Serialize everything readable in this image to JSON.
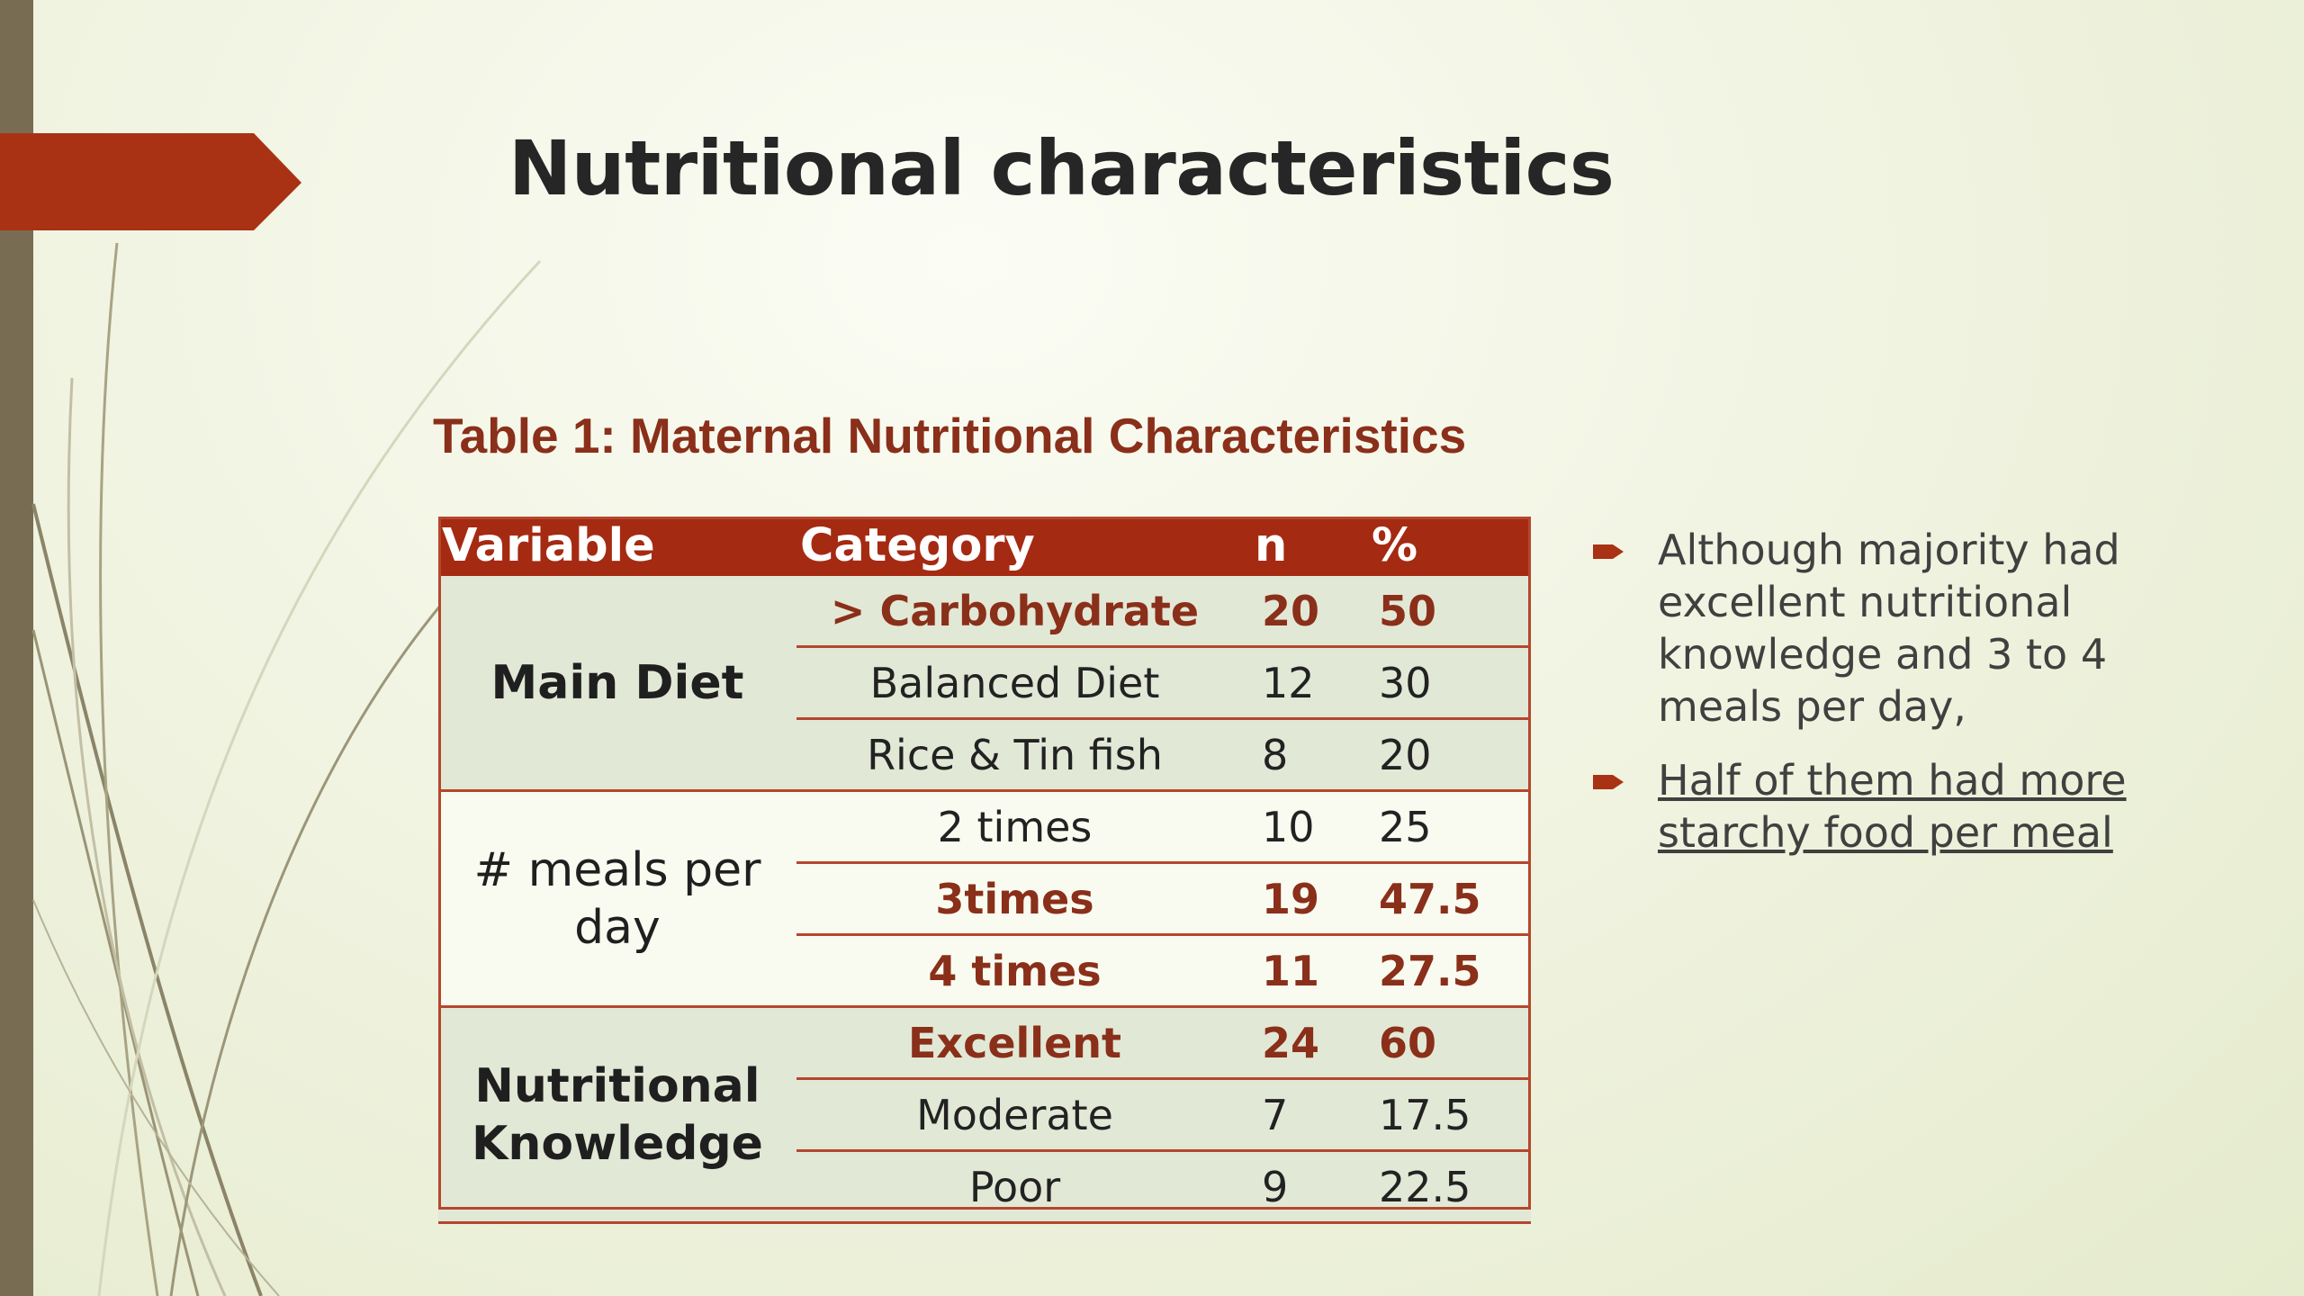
{
  "slide": {
    "title": "Nutritional characteristics",
    "table_caption": "Table 1: Maternal Nutritional Characteristics"
  },
  "table": {
    "headers": [
      "Variable",
      "Category",
      "n",
      "%"
    ],
    "groups": [
      {
        "variable": "Main Diet",
        "rows": [
          {
            "category": "> Carbohydrate",
            "n": "20",
            "pct": "50",
            "bold": true
          },
          {
            "category": "Balanced Diet",
            "n": "12",
            "pct": "30",
            "bold": false
          },
          {
            "category": "Rice & Tin fish",
            "n": "8",
            "pct": "20",
            "bold": false
          }
        ]
      },
      {
        "variable": "# meals per day",
        "rows": [
          {
            "category": "2 times",
            "n": "10",
            "pct": "25",
            "bold": false
          },
          {
            "category": "3times",
            "n": "19",
            "pct": "47.5",
            "bold": true
          },
          {
            "category": "4 times",
            "n": "11",
            "pct": "27.5",
            "bold": true
          }
        ]
      },
      {
        "variable": "Nutritional Knowledge",
        "rows": [
          {
            "category": "Excellent",
            "n": "24",
            "pct": "60",
            "bold": true
          },
          {
            "category": "Moderate",
            "n": "7",
            "pct": "17.5",
            "bold": false
          },
          {
            "category": "Poor",
            "n": "9",
            "pct": "22.5",
            "bold": false
          }
        ]
      }
    ]
  },
  "bullets": [
    {
      "text": "Although majority had excellent nutritional knowledge and 3 to 4 meals per day,",
      "underlined": false
    },
    {
      "text": "Half of them had more starchy food per meal",
      "underlined": true
    }
  ],
  "colors": {
    "accent": "#a52a12",
    "title_text": "#262626",
    "caption_text": "#8a2f1a",
    "left_bar": "#786c52"
  }
}
